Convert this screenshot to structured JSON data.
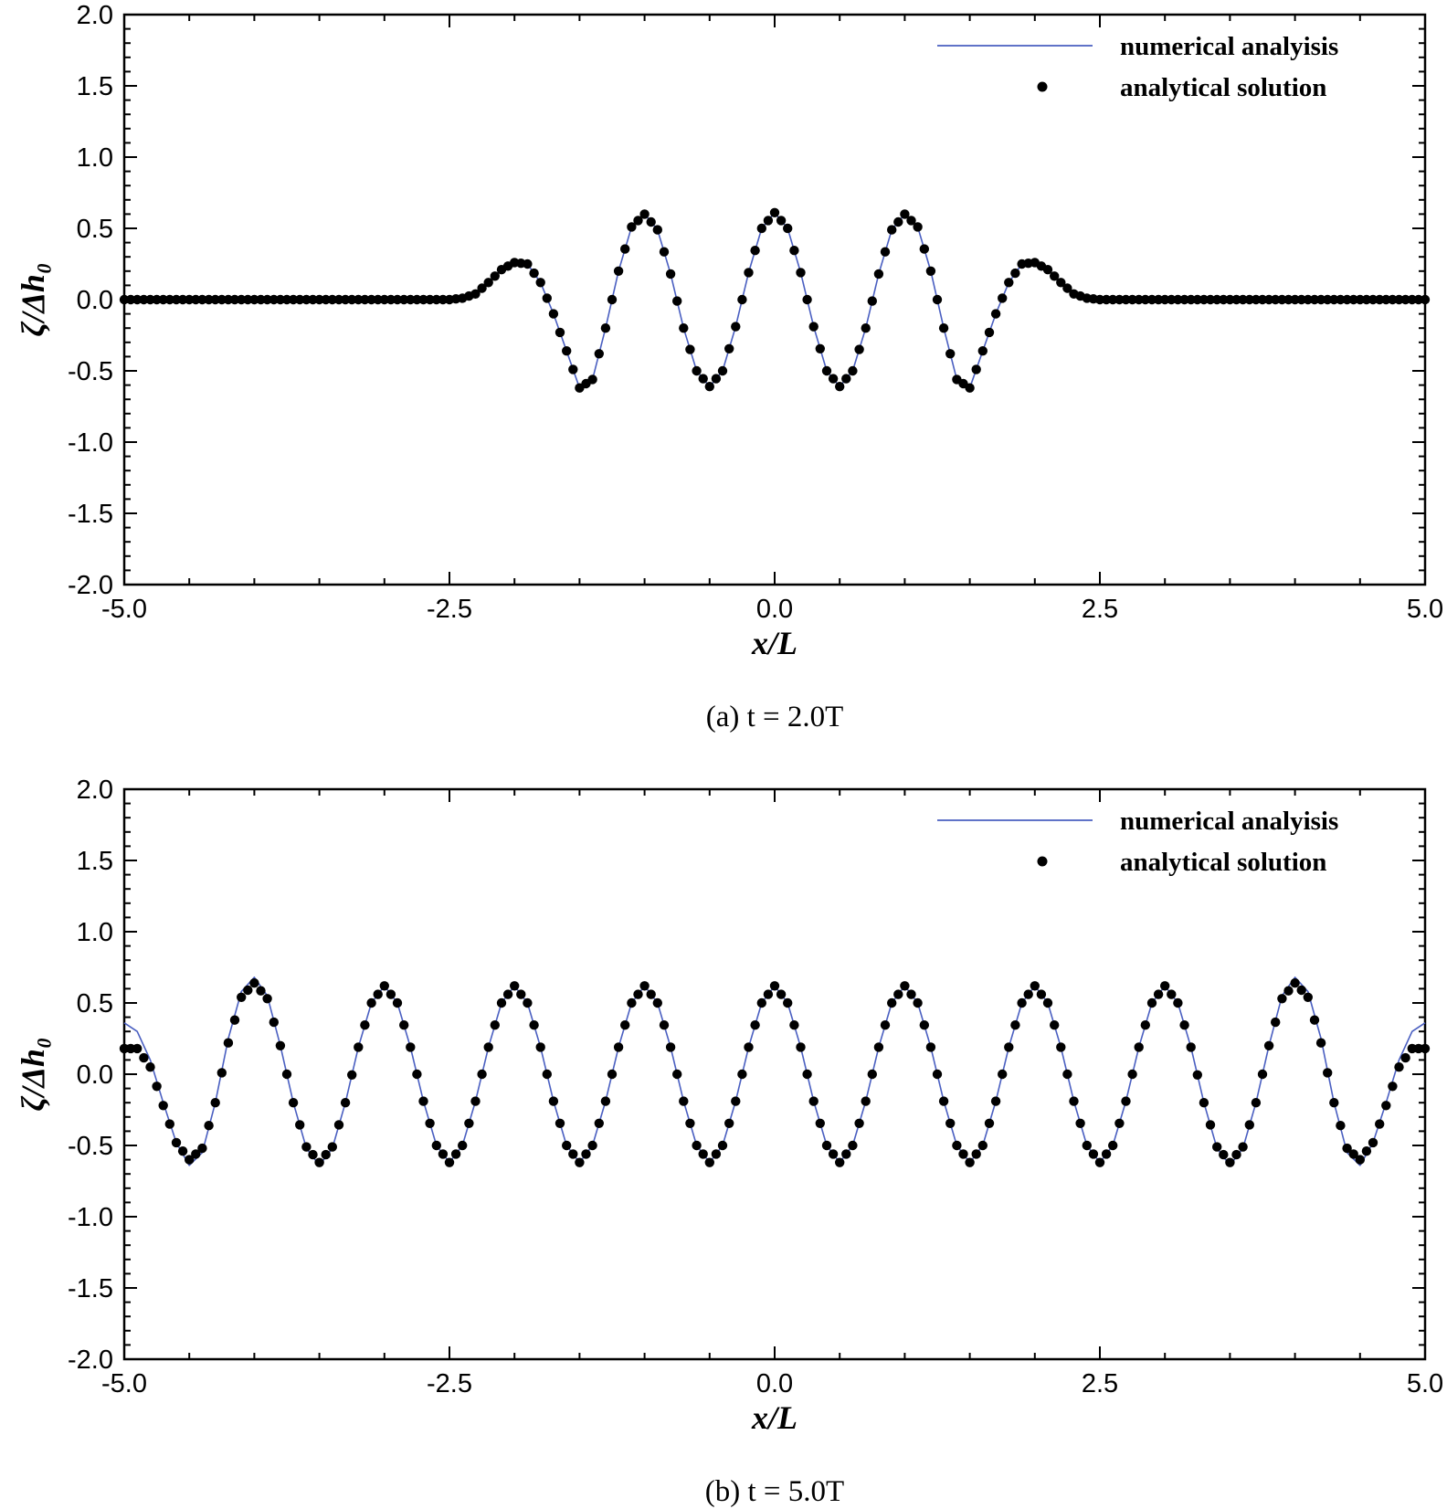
{
  "chart_data": [
    {
      "type": "line",
      "caption": "(a)  t = 2.0T",
      "xlabel": "x/L",
      "ylabel": "ζ/Δh₀",
      "xlim": [
        -5.0,
        5.0
      ],
      "ylim": [
        -2.0,
        2.0
      ],
      "xticks": [
        "-5.0",
        "-2.5",
        "0.0",
        "2.5",
        "5.0"
      ],
      "yticks": [
        "2.0",
        "1.5",
        "1.0",
        "0.5",
        "0.0",
        "-0.5",
        "-1.0",
        "-1.5",
        "-2.0"
      ],
      "legend_position": "top-right",
      "grid": false,
      "series": [
        {
          "name": "numerical analyisis",
          "style": "line",
          "color": "#4a5fc1",
          "x": [
            -5.0,
            -2.6,
            -2.5,
            -2.4,
            -2.3,
            -2.2,
            -2.1,
            -2.0,
            -1.9,
            -1.8,
            -1.7,
            -1.6,
            -1.5,
            -1.4,
            -1.3,
            -1.2,
            -1.1,
            -1.0,
            -0.9,
            -0.8,
            -0.7,
            -0.6,
            -0.5,
            -0.4,
            -0.3,
            -0.2,
            -0.1,
            0.0,
            0.1,
            0.2,
            0.3,
            0.4,
            0.5,
            0.6,
            0.7,
            0.8,
            0.9,
            1.0,
            1.1,
            1.2,
            1.3,
            1.4,
            1.5,
            1.6,
            1.7,
            1.8,
            1.9,
            2.0,
            2.1,
            2.2,
            2.3,
            2.4,
            2.5,
            2.6,
            5.0
          ],
          "y": [
            0.0,
            0.0,
            0.0,
            0.01,
            0.04,
            0.12,
            0.21,
            0.26,
            0.25,
            0.12,
            -0.1,
            -0.36,
            -0.62,
            -0.56,
            -0.2,
            0.2,
            0.51,
            0.6,
            0.49,
            0.18,
            -0.2,
            -0.5,
            -0.61,
            -0.5,
            -0.19,
            0.19,
            0.5,
            0.61,
            0.5,
            0.19,
            -0.19,
            -0.5,
            -0.61,
            -0.5,
            -0.2,
            0.18,
            0.49,
            0.6,
            0.51,
            0.2,
            -0.2,
            -0.56,
            -0.62,
            -0.36,
            -0.1,
            0.12,
            0.25,
            0.26,
            0.21,
            0.12,
            0.04,
            0.01,
            0.0,
            0.0,
            0.0
          ]
        },
        {
          "name": "analytical solution",
          "style": "markers",
          "color": "#000000",
          "x": [
            -5.0,
            -2.6,
            -2.5,
            -2.4,
            -2.3,
            -2.2,
            -2.1,
            -2.0,
            -1.9,
            -1.8,
            -1.7,
            -1.6,
            -1.5,
            -1.4,
            -1.3,
            -1.2,
            -1.1,
            -1.0,
            -0.9,
            -0.8,
            -0.7,
            -0.6,
            -0.5,
            -0.4,
            -0.3,
            -0.2,
            -0.1,
            0.0,
            0.1,
            0.2,
            0.3,
            0.4,
            0.5,
            0.6,
            0.7,
            0.8,
            0.9,
            1.0,
            1.1,
            1.2,
            1.3,
            1.4,
            1.5,
            1.6,
            1.7,
            1.8,
            1.9,
            2.0,
            2.1,
            2.2,
            2.3,
            2.4,
            2.5,
            2.6,
            5.0
          ],
          "y": [
            0.0,
            0.0,
            0.0,
            0.01,
            0.04,
            0.12,
            0.21,
            0.26,
            0.25,
            0.12,
            -0.1,
            -0.36,
            -0.62,
            -0.56,
            -0.2,
            0.2,
            0.51,
            0.6,
            0.49,
            0.18,
            -0.2,
            -0.5,
            -0.61,
            -0.5,
            -0.19,
            0.19,
            0.5,
            0.61,
            0.5,
            0.19,
            -0.19,
            -0.5,
            -0.61,
            -0.5,
            -0.2,
            0.18,
            0.49,
            0.6,
            0.51,
            0.2,
            -0.2,
            -0.56,
            -0.62,
            -0.36,
            -0.1,
            0.12,
            0.25,
            0.26,
            0.21,
            0.12,
            0.04,
            0.01,
            0.0,
            0.0,
            0.0
          ]
        }
      ]
    },
    {
      "type": "line",
      "caption": "(b)  t = 5.0T",
      "xlabel": "x/L",
      "ylabel": "ζ/Δh₀",
      "xlim": [
        -5.0,
        5.0
      ],
      "ylim": [
        -2.0,
        2.0
      ],
      "xticks": [
        "-5.0",
        "-2.5",
        "0.0",
        "2.5",
        "5.0"
      ],
      "yticks": [
        "2.0",
        "1.5",
        "1.0",
        "0.5",
        "0.0",
        "-0.5",
        "-1.0",
        "-1.5",
        "-2.0"
      ],
      "legend_position": "top-right",
      "grid": false,
      "series": [
        {
          "name": "numerical analyisis",
          "style": "line",
          "color": "#4a5fc1",
          "x": [
            -5.0,
            -4.9,
            -4.8,
            -4.7,
            -4.6,
            -4.5,
            -4.4,
            -4.3,
            -4.2,
            -4.1,
            -4.0,
            -3.9,
            -3.8,
            -3.7,
            -3.6,
            -3.5,
            -3.4,
            -3.3,
            -3.2,
            -3.1,
            -3.0,
            -2.9,
            -2.8,
            -2.7,
            -2.6,
            -2.5,
            -2.4,
            -2.3,
            -2.2,
            -2.1,
            -2.0,
            -1.9,
            -1.8,
            -1.7,
            -1.6,
            -1.5,
            -1.4,
            -1.3,
            -1.2,
            -1.1,
            -1.0,
            -0.9,
            -0.8,
            -0.7,
            -0.6,
            -0.5,
            -0.4,
            -0.3,
            -0.2,
            -0.1,
            0.0,
            0.1,
            0.2,
            0.3,
            0.4,
            0.5,
            0.6,
            0.7,
            0.8,
            0.9,
            1.0,
            1.1,
            1.2,
            1.3,
            1.4,
            1.5,
            1.6,
            1.7,
            1.8,
            1.9,
            2.0,
            2.1,
            2.2,
            2.3,
            2.4,
            2.5,
            2.6,
            2.7,
            2.8,
            2.9,
            3.0,
            3.1,
            3.2,
            3.3,
            3.4,
            3.5,
            3.6,
            3.7,
            3.8,
            3.9,
            4.0,
            4.1,
            4.2,
            4.3,
            4.4,
            4.5,
            4.6,
            4.7,
            4.8,
            4.9,
            5.0
          ],
          "y": [
            0.36,
            0.3,
            0.1,
            -0.2,
            -0.48,
            -0.64,
            -0.55,
            -0.2,
            0.25,
            0.58,
            0.68,
            0.55,
            0.2,
            -0.2,
            -0.52,
            -0.64,
            -0.52,
            -0.2,
            0.19,
            0.5,
            0.62,
            0.5,
            0.19,
            -0.19,
            -0.5,
            -0.62,
            -0.5,
            -0.19,
            0.19,
            0.5,
            0.62,
            0.5,
            0.19,
            -0.19,
            -0.5,
            -0.62,
            -0.5,
            -0.19,
            0.19,
            0.5,
            0.62,
            0.5,
            0.19,
            -0.19,
            -0.5,
            -0.62,
            -0.5,
            -0.19,
            0.19,
            0.5,
            0.62,
            0.5,
            0.19,
            -0.19,
            -0.5,
            -0.62,
            -0.5,
            -0.19,
            0.19,
            0.5,
            0.62,
            0.5,
            0.19,
            -0.19,
            -0.5,
            -0.62,
            -0.5,
            -0.19,
            0.19,
            0.5,
            0.62,
            0.5,
            0.19,
            -0.19,
            -0.5,
            -0.62,
            -0.5,
            -0.19,
            0.19,
            0.5,
            0.62,
            0.5,
            0.19,
            -0.2,
            -0.52,
            -0.64,
            -0.52,
            -0.2,
            0.2,
            0.55,
            0.68,
            0.58,
            0.25,
            -0.2,
            -0.55,
            -0.64,
            -0.48,
            -0.2,
            0.1,
            0.3,
            0.36
          ]
        },
        {
          "name": "analytical solution",
          "style": "markers",
          "color": "#000000",
          "x": [
            -5.0,
            -4.9,
            -4.8,
            -4.7,
            -4.6,
            -4.5,
            -4.4,
            -4.3,
            -4.2,
            -4.1,
            -4.0,
            -3.9,
            -3.8,
            -3.7,
            -3.6,
            -3.5,
            -3.4,
            -3.3,
            -3.2,
            -3.1,
            -3.0,
            -2.9,
            -2.8,
            -2.7,
            -2.6,
            -2.5,
            -2.4,
            -2.3,
            -2.2,
            -2.1,
            -2.0,
            -1.9,
            -1.8,
            -1.7,
            -1.6,
            -1.5,
            -1.4,
            -1.3,
            -1.2,
            -1.1,
            -1.0,
            -0.9,
            -0.8,
            -0.7,
            -0.6,
            -0.5,
            -0.4,
            -0.3,
            -0.2,
            -0.1,
            0.0,
            0.1,
            0.2,
            0.3,
            0.4,
            0.5,
            0.6,
            0.7,
            0.8,
            0.9,
            1.0,
            1.1,
            1.2,
            1.3,
            1.4,
            1.5,
            1.6,
            1.7,
            1.8,
            1.9,
            2.0,
            2.1,
            2.2,
            2.3,
            2.4,
            2.5,
            2.6,
            2.7,
            2.8,
            2.9,
            3.0,
            3.1,
            3.2,
            3.3,
            3.4,
            3.5,
            3.6,
            3.7,
            3.8,
            3.9,
            4.0,
            4.1,
            4.2,
            4.3,
            4.4,
            4.5,
            4.6,
            4.7,
            4.8,
            4.9,
            5.0
          ],
          "y": [
            0.18,
            0.18,
            0.05,
            -0.22,
            -0.48,
            -0.6,
            -0.52,
            -0.2,
            0.22,
            0.54,
            0.64,
            0.53,
            0.2,
            -0.2,
            -0.51,
            -0.62,
            -0.51,
            -0.2,
            0.19,
            0.5,
            0.62,
            0.5,
            0.19,
            -0.19,
            -0.5,
            -0.62,
            -0.5,
            -0.19,
            0.19,
            0.5,
            0.62,
            0.5,
            0.19,
            -0.19,
            -0.5,
            -0.62,
            -0.5,
            -0.19,
            0.19,
            0.5,
            0.62,
            0.5,
            0.19,
            -0.19,
            -0.5,
            -0.62,
            -0.5,
            -0.19,
            0.19,
            0.5,
            0.62,
            0.5,
            0.19,
            -0.19,
            -0.5,
            -0.62,
            -0.5,
            -0.19,
            0.19,
            0.5,
            0.62,
            0.5,
            0.19,
            -0.19,
            -0.5,
            -0.62,
            -0.5,
            -0.19,
            0.19,
            0.5,
            0.62,
            0.5,
            0.19,
            -0.19,
            -0.5,
            -0.62,
            -0.5,
            -0.19,
            0.19,
            0.5,
            0.62,
            0.5,
            0.19,
            -0.2,
            -0.51,
            -0.62,
            -0.51,
            -0.2,
            0.2,
            0.53,
            0.64,
            0.54,
            0.22,
            -0.2,
            -0.52,
            -0.6,
            -0.48,
            -0.22,
            0.05,
            0.18,
            0.18
          ]
        }
      ]
    }
  ]
}
